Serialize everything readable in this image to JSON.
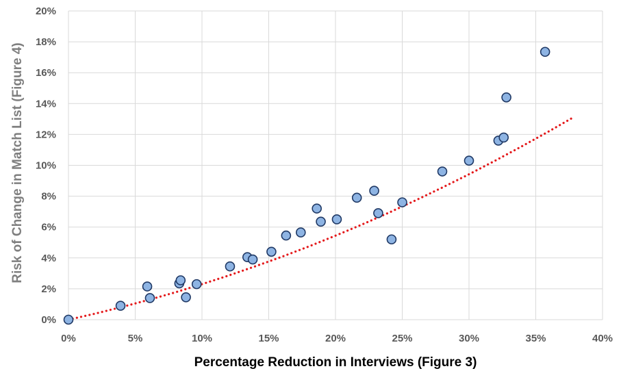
{
  "chart_data": {
    "type": "scatter",
    "title": "",
    "xlabel": "Percentage Reduction in Interviews (Figure 3)",
    "ylabel": "Risk of Change in Match List (Figure 4)",
    "xlim": [
      0,
      40
    ],
    "ylim": [
      0,
      20
    ],
    "x_ticks": [
      "0%",
      "5%",
      "10%",
      "15%",
      "20%",
      "25%",
      "30%",
      "35%",
      "40%"
    ],
    "y_ticks": [
      "0%",
      "2%",
      "4%",
      "6%",
      "8%",
      "10%",
      "12%",
      "14%",
      "16%",
      "18%",
      "20%"
    ],
    "grid": true,
    "series": [
      {
        "points": [
          [
            0.0,
            0.0
          ],
          [
            3.9,
            0.9
          ],
          [
            5.9,
            2.15
          ],
          [
            6.1,
            1.4
          ],
          [
            8.3,
            2.35
          ],
          [
            8.4,
            2.55
          ],
          [
            8.8,
            1.45
          ],
          [
            9.6,
            2.3
          ],
          [
            12.1,
            3.45
          ],
          [
            13.4,
            4.05
          ],
          [
            13.8,
            3.9
          ],
          [
            15.2,
            4.4
          ],
          [
            16.3,
            5.45
          ],
          [
            17.4,
            5.65
          ],
          [
            18.6,
            7.2
          ],
          [
            18.9,
            6.35
          ],
          [
            20.1,
            6.5
          ],
          [
            21.6,
            7.9
          ],
          [
            22.9,
            8.35
          ],
          [
            23.2,
            6.9
          ],
          [
            24.2,
            5.2
          ],
          [
            25.0,
            7.6
          ],
          [
            28.0,
            9.6
          ],
          [
            30.0,
            10.3
          ],
          [
            32.2,
            11.6
          ],
          [
            32.6,
            11.8
          ],
          [
            32.8,
            14.4
          ],
          [
            35.7,
            17.35
          ]
        ],
        "marker_fill": "#8eb4e3",
        "marker_edge": "#1f3864"
      }
    ],
    "trendline": {
      "x": [
        0,
        2,
        4,
        6,
        8,
        10,
        12,
        14,
        16,
        18,
        20,
        22,
        24,
        26,
        28,
        30,
        32,
        34,
        36,
        37.8
      ],
      "y": [
        0,
        0.39,
        0.82,
        1.28,
        1.77,
        2.3,
        2.86,
        3.46,
        4.08,
        4.74,
        5.44,
        6.17,
        6.93,
        7.73,
        8.56,
        9.42,
        10.32,
        11.25,
        12.21,
        13.1
      ],
      "color": "#e41a1c",
      "style": "dotted"
    },
    "colors": {
      "gridline": "#d9d9d9",
      "tick_text": "#595959",
      "xlabel_text": "#000000",
      "ylabel_text": "#7f7f7f"
    }
  }
}
